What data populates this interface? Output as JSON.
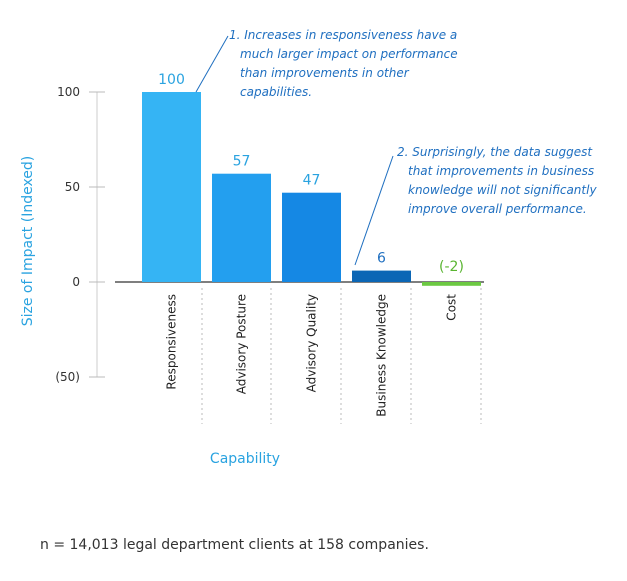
{
  "chart_data": {
    "type": "bar",
    "title": "",
    "xlabel": "Capability",
    "ylabel": "Size of Impact (Indexed)",
    "ylim": [
      -50,
      100
    ],
    "y_ticks": [
      {
        "value": 100,
        "label": "100"
      },
      {
        "value": 50,
        "label": "50"
      },
      {
        "value": 0,
        "label": "0"
      },
      {
        "value": -50,
        "label": "(50)"
      }
    ],
    "categories": [
      "Responsiveness",
      "Advisory Posture",
      "Advisory Quality",
      "Business Knowledge",
      "Cost"
    ],
    "values": [
      100,
      57,
      47,
      6,
      -2
    ],
    "data_labels": [
      "100",
      "57",
      "47",
      "6",
      "(-2)"
    ],
    "colors": [
      "#35b4f4",
      "#239fef",
      "#1588e4",
      "#0b66b5",
      "#6cc942"
    ],
    "label_colors": [
      "#2aa3e0",
      "#2aa3e0",
      "#2aa3e0",
      "#1f6fc0",
      "#5ab531"
    ],
    "annotations": [
      {
        "lines": [
          "1. Increases in responsiveness have a",
          "much larger impact on performance",
          "than improvements in other",
          "capabilities."
        ]
      },
      {
        "lines": [
          "2. Surprisingly, the data suggest",
          "that improvements in business",
          "knowledge will not significantly",
          "improve overall performance."
        ]
      }
    ],
    "grid": false,
    "legend": "none"
  },
  "footnote": "n = 14,013 legal department clients at 158 companies."
}
